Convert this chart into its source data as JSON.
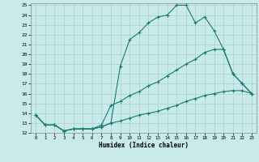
{
  "title": "",
  "xlabel": "Humidex (Indice chaleur)",
  "bg_color": "#c8eaea",
  "line_color": "#1a7a6e",
  "grid_color": "#a8d0d0",
  "xlim": [
    -0.5,
    23.5
  ],
  "ylim": [
    12,
    25.2
  ],
  "xticks": [
    0,
    1,
    2,
    3,
    4,
    5,
    6,
    7,
    8,
    9,
    10,
    11,
    12,
    13,
    14,
    15,
    16,
    17,
    18,
    19,
    20,
    21,
    22,
    23
  ],
  "yticks": [
    12,
    13,
    14,
    15,
    16,
    17,
    18,
    19,
    20,
    21,
    22,
    23,
    24,
    25
  ],
  "line1": {
    "x": [
      0,
      1,
      2,
      3,
      4,
      5,
      6,
      7,
      8,
      9,
      10,
      11,
      12,
      13,
      14,
      15,
      16,
      17,
      18,
      19,
      20,
      21,
      22,
      23
    ],
    "y": [
      13.8,
      12.8,
      12.8,
      12.2,
      12.4,
      12.4,
      12.4,
      12.6,
      13.0,
      18.8,
      21.5,
      22.2,
      23.2,
      23.8,
      24.0,
      25.0,
      25.0,
      23.2,
      23.8,
      22.4,
      20.5,
      18.0,
      17.0,
      16.0
    ]
  },
  "line2": {
    "x": [
      0,
      1,
      2,
      3,
      4,
      5,
      6,
      7,
      8,
      9,
      10,
      11,
      12,
      13,
      14,
      15,
      16,
      17,
      18,
      19,
      20,
      21,
      22,
      23
    ],
    "y": [
      13.8,
      12.8,
      12.8,
      12.2,
      12.4,
      12.4,
      12.4,
      12.8,
      14.8,
      15.2,
      15.8,
      16.2,
      16.8,
      17.2,
      17.8,
      18.4,
      19.0,
      19.5,
      20.2,
      20.5,
      20.5,
      18.0,
      17.0,
      16.0
    ]
  },
  "line3": {
    "x": [
      0,
      1,
      2,
      3,
      4,
      5,
      6,
      7,
      8,
      9,
      10,
      11,
      12,
      13,
      14,
      15,
      16,
      17,
      18,
      19,
      20,
      21,
      22,
      23
    ],
    "y": [
      13.8,
      12.8,
      12.8,
      12.2,
      12.4,
      12.4,
      12.4,
      12.6,
      13.0,
      13.2,
      13.5,
      13.8,
      14.0,
      14.2,
      14.5,
      14.8,
      15.2,
      15.5,
      15.8,
      16.0,
      16.2,
      16.3,
      16.3,
      16.0
    ]
  }
}
